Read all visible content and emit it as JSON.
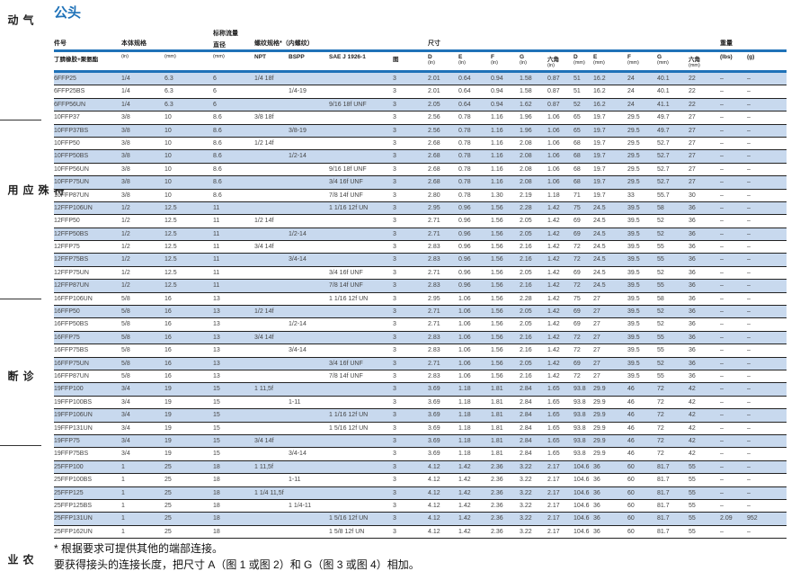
{
  "sidebar": [
    "气动",
    "特殊应用",
    "诊断",
    "农业"
  ],
  "title": "公头",
  "header_top": {
    "part": "件号",
    "body": "本体规格",
    "flow": "标称流量",
    "thread": "螺纹规格*（内螺纹）",
    "dims": "尺寸",
    "weight": "重量"
  },
  "header_sub": {
    "part": "丁腈橡胶+聚氨酯",
    "flow": "直径",
    "cols": [
      {
        "l": "",
        "u": "(in)"
      },
      {
        "l": "",
        "u": "(mm)"
      },
      {
        "l": "",
        "u": "(mm)"
      },
      {
        "l": "NPT",
        "u": ""
      },
      {
        "l": "BSPP",
        "u": ""
      },
      {
        "l": "SAE J 1926-1",
        "u": ""
      },
      {
        "l": "图",
        "u": ""
      },
      {
        "l": "D",
        "u": "(in)"
      },
      {
        "l": "E",
        "u": "(in)"
      },
      {
        "l": "F",
        "u": "(in)"
      },
      {
        "l": "G",
        "u": "(in)"
      },
      {
        "l": "六角",
        "u": "(in)"
      },
      {
        "l": "D",
        "u": "(mm)"
      },
      {
        "l": "E",
        "u": "(mm)"
      },
      {
        "l": "F",
        "u": "(mm)"
      },
      {
        "l": "G",
        "u": "(mm)"
      },
      {
        "l": "六角",
        "u": "(mm)"
      },
      {
        "l": "(lbs)",
        "u": ""
      },
      {
        "l": "(g)",
        "u": ""
      }
    ]
  },
  "rows": [
    [
      "6FFP25",
      "1/4",
      "6.3",
      "6",
      "1/4 18f",
      "",
      "",
      "3",
      "2.01",
      "0.64",
      "0.94",
      "1.58",
      "0.87",
      "51",
      "16.2",
      "24",
      "40.1",
      "22",
      "–",
      "–"
    ],
    [
      "6FFP25BS",
      "1/4",
      "6.3",
      "6",
      "",
      "1/4-19",
      "",
      "3",
      "2.01",
      "0.64",
      "0.94",
      "1.58",
      "0.87",
      "51",
      "16.2",
      "24",
      "40.1",
      "22",
      "–",
      "–"
    ],
    [
      "6FFP56UN",
      "1/4",
      "6.3",
      "6",
      "",
      "",
      "9/16 18f UNF",
      "3",
      "2.05",
      "0.64",
      "0.94",
      "1.62",
      "0.87",
      "52",
      "16.2",
      "24",
      "41.1",
      "22",
      "–",
      "–"
    ],
    [
      "10FFP37",
      "3/8",
      "10",
      "8.6",
      "3/8 18f",
      "",
      "",
      "3",
      "2.56",
      "0.78",
      "1.16",
      "1.96",
      "1.06",
      "65",
      "19.7",
      "29.5",
      "49.7",
      "27",
      "–",
      "–"
    ],
    [
      "10FFP37BS",
      "3/8",
      "10",
      "8.6",
      "",
      "3/8-19",
      "",
      "3",
      "2.56",
      "0.78",
      "1.16",
      "1.96",
      "1.06",
      "65",
      "19.7",
      "29.5",
      "49.7",
      "27",
      "–",
      "–"
    ],
    [
      "10FFP50",
      "3/8",
      "10",
      "8.6",
      "1/2 14f",
      "",
      "",
      "3",
      "2.68",
      "0.78",
      "1.16",
      "2.08",
      "1.06",
      "68",
      "19.7",
      "29.5",
      "52.7",
      "27",
      "–",
      "–"
    ],
    [
      "10FFP50BS",
      "3/8",
      "10",
      "8.6",
      "",
      "1/2-14",
      "",
      "3",
      "2.68",
      "0.78",
      "1.16",
      "2.08",
      "1.06",
      "68",
      "19.7",
      "29.5",
      "52.7",
      "27",
      "–",
      "–"
    ],
    [
      "10FFP56UN",
      "3/8",
      "10",
      "8.6",
      "",
      "",
      "9/16 18f UNF",
      "3",
      "2.68",
      "0.78",
      "1.16",
      "2.08",
      "1.06",
      "68",
      "19.7",
      "29.5",
      "52.7",
      "27",
      "–",
      "–"
    ],
    [
      "10FFP75UN",
      "3/8",
      "10",
      "8.6",
      "",
      "",
      "3/4 16f UNF",
      "3",
      "2.68",
      "0.78",
      "1.16",
      "2.08",
      "1.06",
      "68",
      "19.7",
      "29.5",
      "52.7",
      "27",
      "–",
      "–"
    ],
    [
      "10FFP87UN",
      "3/8",
      "10",
      "8.6",
      "",
      "",
      "7/8 14f UNF",
      "3",
      "2.80",
      "0.78",
      "1.30",
      "2.19",
      "1.18",
      "71",
      "19.7",
      "33",
      "55.7",
      "30",
      "–",
      "–"
    ],
    [
      "12FFP106UN",
      "1/2",
      "12.5",
      "11",
      "",
      "",
      "1 1/16 12f UN",
      "3",
      "2.95",
      "0.96",
      "1.56",
      "2.28",
      "1.42",
      "75",
      "24.5",
      "39.5",
      "58",
      "36",
      "–",
      "–"
    ],
    [
      "12FFP50",
      "1/2",
      "12.5",
      "11",
      "1/2 14f",
      "",
      "",
      "3",
      "2.71",
      "0.96",
      "1.56",
      "2.05",
      "1.42",
      "69",
      "24.5",
      "39.5",
      "52",
      "36",
      "–",
      "–"
    ],
    [
      "12FFP50BS",
      "1/2",
      "12.5",
      "11",
      "",
      "1/2-14",
      "",
      "3",
      "2.71",
      "0.96",
      "1.56",
      "2.05",
      "1.42",
      "69",
      "24.5",
      "39.5",
      "52",
      "36",
      "–",
      "–"
    ],
    [
      "12FFP75",
      "1/2",
      "12.5",
      "11",
      "3/4 14f",
      "",
      "",
      "3",
      "2.83",
      "0.96",
      "1.56",
      "2.16",
      "1.42",
      "72",
      "24.5",
      "39.5",
      "55",
      "36",
      "–",
      "–"
    ],
    [
      "12FFP75BS",
      "1/2",
      "12.5",
      "11",
      "",
      "3/4-14",
      "",
      "3",
      "2.83",
      "0.96",
      "1.56",
      "2.16",
      "1.42",
      "72",
      "24.5",
      "39.5",
      "55",
      "36",
      "–",
      "–"
    ],
    [
      "12FFP75UN",
      "1/2",
      "12.5",
      "11",
      "",
      "",
      "3/4 16f UNF",
      "3",
      "2.71",
      "0.96",
      "1.56",
      "2.05",
      "1.42",
      "69",
      "24.5",
      "39.5",
      "52",
      "36",
      "–",
      "–"
    ],
    [
      "12FFP87UN",
      "1/2",
      "12.5",
      "11",
      "",
      "",
      "7/8 14f UNF",
      "3",
      "2.83",
      "0.96",
      "1.56",
      "2.16",
      "1.42",
      "72",
      "24.5",
      "39.5",
      "55",
      "36",
      "–",
      "–"
    ],
    [
      "16FFP106UN",
      "5/8",
      "16",
      "13",
      "",
      "",
      "1 1/16 12f UN",
      "3",
      "2.95",
      "1.06",
      "1.56",
      "2.28",
      "1.42",
      "75",
      "27",
      "39.5",
      "58",
      "36",
      "–",
      "–"
    ],
    [
      "16FFP50",
      "5/8",
      "16",
      "13",
      "1/2 14f",
      "",
      "",
      "3",
      "2.71",
      "1.06",
      "1.56",
      "2.05",
      "1.42",
      "69",
      "27",
      "39.5",
      "52",
      "36",
      "–",
      "–"
    ],
    [
      "16FFP50BS",
      "5/8",
      "16",
      "13",
      "",
      "1/2-14",
      "",
      "3",
      "2.71",
      "1.06",
      "1.56",
      "2.05",
      "1.42",
      "69",
      "27",
      "39.5",
      "52",
      "36",
      "–",
      "–"
    ],
    [
      "16FFP75",
      "5/8",
      "16",
      "13",
      "3/4 14f",
      "",
      "",
      "3",
      "2.83",
      "1.06",
      "1.56",
      "2.16",
      "1.42",
      "72",
      "27",
      "39.5",
      "55",
      "36",
      "–",
      "–"
    ],
    [
      "16FFP75BS",
      "5/8",
      "16",
      "13",
      "",
      "3/4-14",
      "",
      "3",
      "2.83",
      "1.06",
      "1.56",
      "2.16",
      "1.42",
      "72",
      "27",
      "39.5",
      "55",
      "36",
      "–",
      "–"
    ],
    [
      "16FFP75UN",
      "5/8",
      "16",
      "13",
      "",
      "",
      "3/4 16f UNF",
      "3",
      "2.71",
      "1.06",
      "1.56",
      "2.05",
      "1.42",
      "69",
      "27",
      "39.5",
      "52",
      "36",
      "–",
      "–"
    ],
    [
      "16FFP87UN",
      "5/8",
      "16",
      "13",
      "",
      "",
      "7/8 14f UNF",
      "3",
      "2.83",
      "1.06",
      "1.56",
      "2.16",
      "1.42",
      "72",
      "27",
      "39.5",
      "55",
      "36",
      "–",
      "–"
    ],
    [
      "19FFP100",
      "3/4",
      "19",
      "15",
      "1 11,5f",
      "",
      "",
      "3",
      "3.69",
      "1.18",
      "1.81",
      "2.84",
      "1.65",
      "93.8",
      "29.9",
      "46",
      "72",
      "42",
      "–",
      "–"
    ],
    [
      "19FFP100BS",
      "3/4",
      "19",
      "15",
      "",
      "1-11",
      "",
      "3",
      "3.69",
      "1.18",
      "1.81",
      "2.84",
      "1.65",
      "93.8",
      "29.9",
      "46",
      "72",
      "42",
      "–",
      "–"
    ],
    [
      "19FFP106UN",
      "3/4",
      "19",
      "15",
      "",
      "",
      "1 1/16 12f UN",
      "3",
      "3.69",
      "1.18",
      "1.81",
      "2.84",
      "1.65",
      "93.8",
      "29.9",
      "46",
      "72",
      "42",
      "–",
      "–"
    ],
    [
      "19FFP131UN",
      "3/4",
      "19",
      "15",
      "",
      "",
      "1 5/16 12f UN",
      "3",
      "3.69",
      "1.18",
      "1.81",
      "2.84",
      "1.65",
      "93.8",
      "29.9",
      "46",
      "72",
      "42",
      "–",
      "–"
    ],
    [
      "19FFP75",
      "3/4",
      "19",
      "15",
      "3/4 14f",
      "",
      "",
      "3",
      "3.69",
      "1.18",
      "1.81",
      "2.84",
      "1.65",
      "93.8",
      "29.9",
      "46",
      "72",
      "42",
      "–",
      "–"
    ],
    [
      "19FFP75BS",
      "3/4",
      "19",
      "15",
      "",
      "3/4-14",
      "",
      "3",
      "3.69",
      "1.18",
      "1.81",
      "2.84",
      "1.65",
      "93.8",
      "29.9",
      "46",
      "72",
      "42",
      "–",
      "–"
    ],
    [
      "25FFP100",
      "1",
      "25",
      "18",
      "1 11,5f",
      "",
      "",
      "3",
      "4.12",
      "1.42",
      "2.36",
      "3.22",
      "2.17",
      "104.6",
      "36",
      "60",
      "81.7",
      "55",
      "–",
      "–"
    ],
    [
      "25FFP100BS",
      "1",
      "25",
      "18",
      "",
      "1-11",
      "",
      "3",
      "4.12",
      "1.42",
      "2.36",
      "3.22",
      "2.17",
      "104.6",
      "36",
      "60",
      "81.7",
      "55",
      "–",
      "–"
    ],
    [
      "25FFP125",
      "1",
      "25",
      "18",
      "1 1/4 11,5f",
      "",
      "",
      "3",
      "4.12",
      "1.42",
      "2.36",
      "3.22",
      "2.17",
      "104.6",
      "36",
      "60",
      "81.7",
      "55",
      "–",
      "–"
    ],
    [
      "25FFP125BS",
      "1",
      "25",
      "18",
      "",
      "1 1/4-11",
      "",
      "3",
      "4.12",
      "1.42",
      "2.36",
      "3.22",
      "2.17",
      "104.6",
      "36",
      "60",
      "81.7",
      "55",
      "–",
      "–"
    ],
    [
      "25FFP131UN",
      "1",
      "25",
      "18",
      "",
      "",
      "1 5/16 12f UN",
      "3",
      "4.12",
      "1.42",
      "2.36",
      "3.22",
      "2.17",
      "104.6",
      "36",
      "60",
      "81.7",
      "55",
      "2.09",
      "952"
    ],
    [
      "25FFP162UN",
      "1",
      "25",
      "18",
      "",
      "",
      "1 5/8 12f UN",
      "3",
      "4.12",
      "1.42",
      "2.36",
      "3.22",
      "2.17",
      "104.6",
      "36",
      "60",
      "81.7",
      "55",
      "–",
      "–"
    ]
  ],
  "footnotes": [
    "* 根据要求可提供其他的端部连接。",
    "要获得接头的连接长度，把尺寸 A（图 1 或图 2）和 G（图 3 或图 4）相加。"
  ]
}
